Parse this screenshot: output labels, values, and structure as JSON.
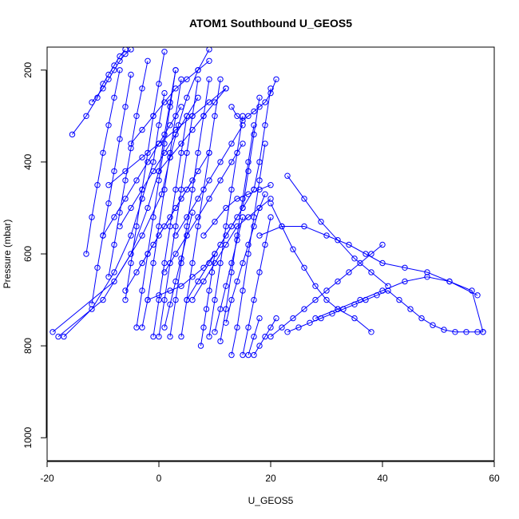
{
  "chart_data": {
    "type": "line",
    "title": "ATOM1 Southbound U_GEOS5",
    "xlabel": "U_GEOS5",
    "ylabel": "Pressure (mbar)",
    "xlim": [
      -20,
      60
    ],
    "ylim": [
      1050,
      150
    ],
    "y_reversed": true,
    "x_ticks": [
      -20,
      0,
      20,
      40,
      60
    ],
    "y_ticks": [
      200,
      400,
      600,
      800,
      1000
    ],
    "grid": false,
    "legend": "none",
    "line_color": "#0000ff",
    "marker": "open-circle",
    "series": [
      {
        "x": [
          -19,
          -8,
          -3,
          0.5,
          2,
          3.5,
          5,
          7,
          9
        ],
        "y": [
          770,
          660,
          560,
          470,
          390,
          320,
          260,
          200,
          155
        ]
      },
      {
        "x": [
          -18,
          -10,
          -5,
          -2,
          0,
          1,
          2,
          3
        ],
        "y": [
          780,
          700,
          600,
          500,
          420,
          340,
          270,
          200
        ]
      },
      {
        "x": [
          -17,
          -12,
          -8,
          -5,
          -3,
          -1,
          0,
          1
        ],
        "y": [
          780,
          720,
          640,
          560,
          480,
          400,
          320,
          250
        ]
      },
      {
        "x": [
          -15.5,
          -13,
          -11,
          -10,
          -9,
          -8,
          -7,
          -6
        ],
        "y": [
          340,
          300,
          260,
          230,
          210,
          190,
          170,
          155
        ]
      },
      {
        "x": [
          -13,
          -12,
          -11,
          -10,
          -9,
          -8,
          -7
        ],
        "y": [
          600,
          520,
          450,
          380,
          320,
          260,
          200
        ]
      },
      {
        "x": [
          -12,
          -11,
          -10,
          -9,
          -8,
          -7,
          -6,
          -5
        ],
        "y": [
          710,
          630,
          560,
          490,
          420,
          350,
          280,
          210
        ]
      },
      {
        "x": [
          -12,
          -10,
          -9,
          -8,
          -7,
          -6,
          -5
        ],
        "y": [
          270,
          240,
          220,
          200,
          180,
          165,
          155
        ]
      },
      {
        "x": [
          -9,
          -8,
          -7,
          -6,
          -5,
          -4,
          -3,
          -2
        ],
        "y": [
          650,
          580,
          510,
          440,
          370,
          300,
          240,
          180
        ]
      },
      {
        "x": [
          -6,
          -5,
          -4,
          -3,
          -2,
          -1,
          0,
          1
        ],
        "y": [
          700,
          620,
          540,
          460,
          380,
          300,
          230,
          160
        ]
      },
      {
        "x": [
          -4,
          -3,
          -2,
          -1,
          0,
          1,
          2,
          3
        ],
        "y": [
          760,
          680,
          600,
          520,
          440,
          360,
          280,
          200
        ]
      },
      {
        "x": [
          -3,
          -2,
          -1,
          0,
          1,
          2,
          3,
          4
        ],
        "y": [
          760,
          700,
          620,
          540,
          460,
          380,
          300,
          220
        ]
      },
      {
        "x": [
          -1,
          0,
          1,
          2,
          3,
          4,
          5
        ],
        "y": [
          780,
          700,
          620,
          540,
          460,
          380,
          300
        ]
      },
      {
        "x": [
          0,
          1,
          2,
          3,
          4,
          5,
          6,
          7
        ],
        "y": [
          780,
          700,
          620,
          540,
          460,
          380,
          300,
          220
        ]
      },
      {
        "x": [
          2,
          3,
          4,
          5,
          6,
          7,
          8,
          9
        ],
        "y": [
          780,
          700,
          620,
          540,
          460,
          380,
          300,
          220
        ]
      },
      {
        "x": [
          4,
          5,
          6,
          7,
          8,
          9,
          10,
          11
        ],
        "y": [
          780,
          700,
          620,
          540,
          460,
          380,
          300,
          220
        ]
      },
      {
        "x": [
          7.5,
          8,
          8.5,
          9,
          9.5,
          10
        ],
        "y": [
          800,
          760,
          720,
          680,
          640,
          600
        ]
      },
      {
        "x": [
          9,
          10,
          11,
          12,
          13,
          14,
          15
        ],
        "y": [
          780,
          700,
          620,
          540,
          460,
          380,
          300
        ]
      },
      {
        "x": [
          11,
          12,
          13,
          14,
          15,
          16,
          17
        ],
        "y": [
          790,
          720,
          640,
          560,
          480,
          400,
          320
        ]
      },
      {
        "x": [
          13,
          14,
          15,
          16,
          17,
          18,
          19
        ],
        "y": [
          820,
          760,
          680,
          600,
          520,
          440,
          360
        ]
      },
      {
        "x": [
          15,
          16,
          17,
          18,
          19,
          20
        ],
        "y": [
          820,
          760,
          700,
          640,
          580,
          520
        ]
      },
      {
        "x": [
          16,
          17,
          18
        ],
        "y": [
          820,
          780,
          740
        ]
      },
      {
        "x": [
          17,
          18,
          19,
          20,
          21
        ],
        "y": [
          820,
          800,
          780,
          760,
          740
        ]
      },
      {
        "x": [
          20,
          22,
          24,
          26,
          28,
          30,
          32,
          34,
          36,
          38,
          40
        ],
        "y": [
          780,
          760,
          740,
          720,
          700,
          680,
          660,
          640,
          620,
          600,
          580
        ]
      },
      {
        "x": [
          23,
          25,
          27,
          29,
          31,
          33,
          35,
          37,
          39,
          41,
          43,
          45,
          47,
          49,
          51,
          53,
          55,
          57,
          58
        ],
        "y": [
          770,
          760,
          750,
          740,
          730,
          720,
          710,
          700,
          690,
          680,
          700,
          720,
          740,
          755,
          765,
          770,
          770,
          770,
          770
        ]
      },
      {
        "x": [
          28,
          32,
          36,
          40,
          44,
          48,
          52,
          56,
          58
        ],
        "y": [
          740,
          720,
          700,
          680,
          660,
          650,
          660,
          680,
          770
        ]
      },
      {
        "x": [
          18,
          22,
          26,
          30,
          34,
          37,
          40,
          44,
          48,
          52,
          57
        ],
        "y": [
          560,
          540,
          540,
          560,
          580,
          600,
          620,
          630,
          640,
          660,
          690
        ]
      },
      {
        "x": [
          23,
          26,
          29,
          32,
          35,
          38,
          41
        ],
        "y": [
          430,
          480,
          530,
          570,
          610,
          640,
          670
        ]
      },
      {
        "x": [
          20,
          22,
          24,
          26,
          28,
          30,
          32,
          35,
          38
        ],
        "y": [
          490,
          540,
          590,
          630,
          670,
          700,
          720,
          740,
          770
        ]
      },
      {
        "x": [
          13,
          14,
          15,
          16,
          17,
          18,
          19,
          20,
          21
        ],
        "y": [
          280,
          300,
          310,
          300,
          290,
          280,
          270,
          250,
          220
        ]
      },
      {
        "x": [
          15,
          16,
          17,
          18
        ],
        "y": [
          500,
          420,
          340,
          260
        ]
      },
      {
        "x": [
          17,
          18,
          19,
          20
        ],
        "y": [
          460,
          400,
          320,
          240
        ]
      },
      {
        "x": [
          12,
          13,
          14,
          15,
          16,
          17,
          18,
          19
        ],
        "y": [
          750,
          700,
          660,
          620,
          580,
          540,
          500,
          470
        ]
      },
      {
        "x": [
          6,
          8,
          10,
          12,
          14,
          16,
          18,
          20
        ],
        "y": [
          700,
          660,
          620,
          580,
          540,
          520,
          500,
          480
        ]
      },
      {
        "x": [
          -2,
          0,
          2,
          4,
          6,
          8,
          10,
          12,
          14
        ],
        "y": [
          700,
          690,
          680,
          670,
          650,
          630,
          600,
          560,
          520
        ]
      },
      {
        "x": [
          -7,
          -5,
          -3,
          -1,
          1,
          3,
          5,
          7
        ],
        "y": [
          540,
          500,
          460,
          420,
          380,
          340,
          300,
          260
        ]
      },
      {
        "x": [
          -9,
          -6,
          -3,
          0,
          3,
          6,
          9,
          12
        ],
        "y": [
          450,
          420,
          390,
          360,
          330,
          300,
          270,
          240
        ]
      },
      {
        "x": [
          -5,
          -3,
          -1,
          1,
          3,
          5,
          7,
          9
        ],
        "y": [
          360,
          330,
          300,
          270,
          240,
          220,
          200,
          180
        ]
      },
      {
        "x": [
          -10,
          -8,
          -6,
          -4,
          -2,
          0,
          2,
          4
        ],
        "y": [
          560,
          520,
          480,
          440,
          400,
          360,
          320,
          280
        ]
      },
      {
        "x": [
          1,
          3,
          5,
          7,
          9,
          11,
          13,
          15
        ],
        "y": [
          640,
          600,
          560,
          520,
          480,
          440,
          400,
          360
        ]
      },
      {
        "x": [
          3,
          5,
          7,
          9,
          11,
          13,
          15
        ],
        "y": [
          560,
          520,
          480,
          440,
          400,
          360,
          320
        ]
      },
      {
        "x": [
          5,
          7,
          9,
          11,
          13,
          15,
          17
        ],
        "y": [
          700,
          660,
          620,
          580,
          540,
          500,
          460
        ]
      },
      {
        "x": [
          -3,
          -1,
          1,
          3,
          5,
          7,
          9
        ],
        "y": [
          620,
          580,
          540,
          500,
          460,
          420,
          380
        ]
      },
      {
        "x": [
          0,
          2,
          4,
          6,
          8,
          10,
          12
        ],
        "y": [
          420,
          390,
          360,
          330,
          300,
          270,
          240
        ]
      },
      {
        "x": [
          8,
          10,
          12,
          14,
          16,
          18,
          20
        ],
        "y": [
          560,
          530,
          500,
          480,
          470,
          460,
          450
        ]
      },
      {
        "x": [
          -6,
          -4,
          -2,
          0,
          2,
          4,
          6
        ],
        "y": [
          680,
          640,
          600,
          560,
          520,
          480,
          440
        ]
      },
      {
        "x": [
          10,
          11,
          12,
          13,
          14,
          15
        ],
        "y": [
          770,
          720,
          670,
          620,
          570,
          520
        ]
      },
      {
        "x": [
          1,
          2,
          3,
          4,
          5,
          6
        ],
        "y": [
          760,
          710,
          660,
          610,
          560,
          510
        ]
      }
    ]
  }
}
